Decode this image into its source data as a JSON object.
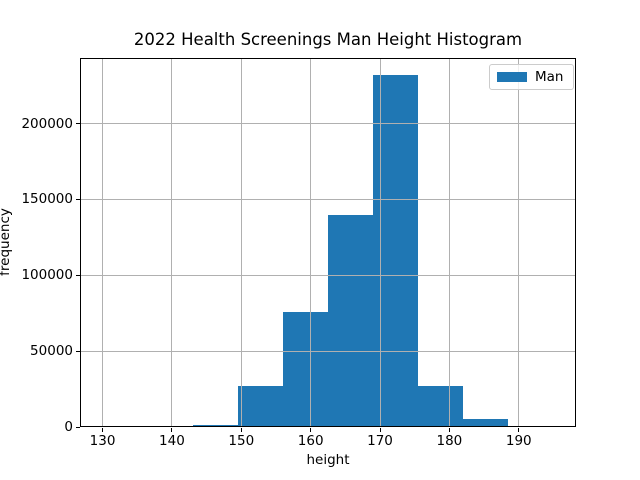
{
  "figure": {
    "background": "#ffffff"
  },
  "chart_data": {
    "type": "bar",
    "subtype": "histogram",
    "title": "2022 Health Screenings Man Height Histogram",
    "xlabel": "height",
    "ylabel": "frequency",
    "series": [
      {
        "name": "Man",
        "color": "#1f77b4",
        "bin_edges": [
          130,
          136.5,
          143,
          149.5,
          156,
          162.5,
          169,
          175.5,
          182,
          188.5,
          195
        ],
        "counts": [
          0,
          0,
          1600,
          27000,
          76000,
          140000,
          232000,
          27000,
          5600,
          900
        ]
      }
    ],
    "xlim": [
      126.75,
      198.25
    ],
    "ylim": [
      0,
      243600
    ],
    "xticks": [
      130,
      140,
      150,
      160,
      170,
      180,
      190
    ],
    "xtick_labels": [
      "130",
      "140",
      "150",
      "160",
      "170",
      "180",
      "190"
    ],
    "yticks": [
      0,
      50000,
      100000,
      150000,
      200000
    ],
    "ytick_labels": [
      "0",
      "50000",
      "100000",
      "150000",
      "200000"
    ],
    "grid": true,
    "grid_color": "#b0b0b0",
    "spine_color": "#000000",
    "legend": {
      "position": "upper right",
      "entries": [
        {
          "label": "Man",
          "color": "#1f77b4"
        }
      ]
    }
  }
}
